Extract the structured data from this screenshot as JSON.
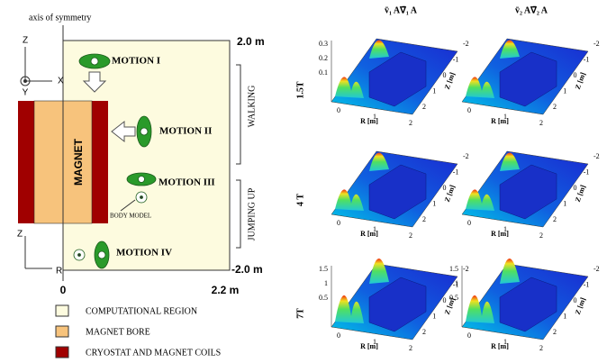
{
  "left": {
    "axis_label": "axis of symmetry",
    "z_top_label": "2.0 m",
    "z_bottom_label": "-2.0 m",
    "r_start_label": "0",
    "r_end_label": "2.2 m",
    "coords_top": {
      "z": "Z",
      "x": "X",
      "y": "Y"
    },
    "coords_bottom": {
      "z": "Z",
      "r": "R"
    },
    "magnet_label": "MAGNET",
    "motions": [
      "MOTION I",
      "MOTION II",
      "MOTION III",
      "MOTION IV"
    ],
    "body_model": "BODY MODEL",
    "walking": "WALKING",
    "jumping": "JUMPING UP",
    "legend": [
      "COMPUTATIONAL REGION",
      "MAGNET BORE",
      "CRYOSTAT AND MAGNET COILS"
    ]
  },
  "right": {
    "columns": [
      "v̄₁ A∇̄₁ A",
      "v̄₂ A∇̄₂ A"
    ],
    "rows": [
      "1.5T",
      "4 T",
      "7T"
    ],
    "plots": [
      {
        "r_label": "R [m]",
        "z_label": "Z [m]",
        "r_ticks": [
          "0",
          "1",
          "2"
        ],
        "z_ticks": [
          "-2",
          "-1",
          "0",
          "1",
          "2"
        ],
        "v_ticks": [
          "0.3",
          "0.2",
          "0.1"
        ]
      },
      {
        "r_label": "R [m]",
        "z_label": "Z [m]",
        "r_ticks": [
          "0",
          "1",
          "2"
        ],
        "z_ticks": [
          "-2",
          "-1",
          "0",
          "1",
          "2"
        ]
      },
      {
        "r_label": "R [m]",
        "z_label": "Z [m]",
        "r_ticks": [
          "0",
          "1",
          "2"
        ],
        "z_ticks": [
          "-2",
          "-1",
          "0",
          "1",
          "2"
        ]
      },
      {
        "r_label": "R [m]",
        "z_label": "Z [m]",
        "r_ticks": [
          "0",
          "1",
          "2"
        ],
        "z_ticks": [
          "-2",
          "-1",
          "0",
          "1",
          "2"
        ]
      },
      {
        "r_label": "R [m]",
        "z_label": "Z [m]",
        "r_ticks": [
          "0",
          "1",
          "2"
        ],
        "z_ticks": [
          "-2",
          "-1",
          "0",
          "1",
          "2"
        ],
        "v_ticks": [
          "1.5",
          "1",
          "0.5"
        ]
      },
      {
        "r_label": "R [m]",
        "z_label": "Z [m]",
        "r_ticks": [
          "0",
          "1",
          "2"
        ],
        "z_ticks": [
          "-2",
          "-1",
          "0",
          "1",
          "2"
        ],
        "v_ticks": [
          "1.5",
          "1",
          "0.5"
        ]
      }
    ]
  }
}
